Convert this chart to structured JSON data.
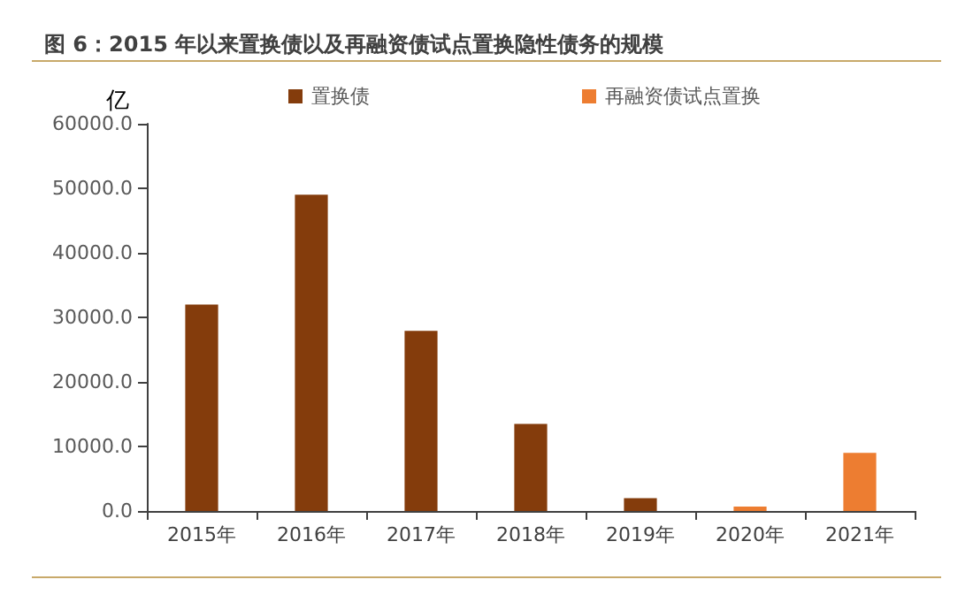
{
  "chart_data": {
    "type": "bar",
    "title": "图 6：2015 年以来置换债以及再融资债试点置换隐性债务的规模",
    "ylabel": "亿",
    "categories": [
      "2015年",
      "2016年",
      "2017年",
      "2018年",
      "2019年",
      "2020年",
      "2021年"
    ],
    "series": [
      {
        "name": "置换债",
        "color": "#843c0c",
        "values": [
          32000,
          49000,
          27900,
          13500,
          2000,
          null,
          null
        ]
      },
      {
        "name": "再融资债试点置换",
        "color": "#ed7d31",
        "values": [
          null,
          null,
          null,
          null,
          null,
          700,
          9000
        ]
      }
    ],
    "stacked": true,
    "ylim": [
      0,
      60000
    ],
    "yticks": [
      {
        "value": 0,
        "label": "0.0"
      },
      {
        "value": 10000,
        "label": "10000.0"
      },
      {
        "value": 20000,
        "label": "20000.0"
      },
      {
        "value": 30000,
        "label": "30000.0"
      },
      {
        "value": 40000,
        "label": "40000.0"
      },
      {
        "value": 50000,
        "label": "50000.0"
      },
      {
        "value": 60000,
        "label": "60000.0"
      }
    ],
    "grid": false,
    "legend": "top"
  }
}
